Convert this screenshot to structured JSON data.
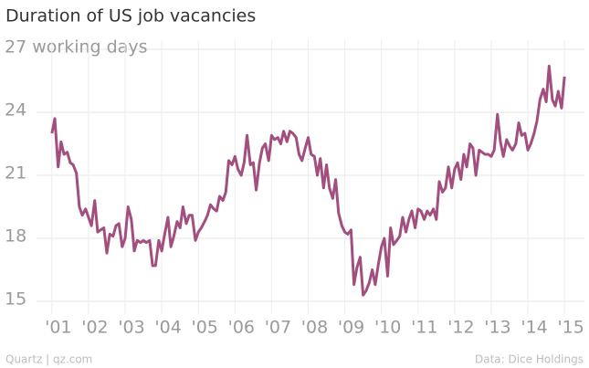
{
  "chart_data": {
    "type": "line",
    "title": "Duration of US job vacancies",
    "source": "Data: Dice Holdings",
    "credit": "Quartz | qz.com",
    "x": [
      2001,
      2001.08,
      2001.17,
      2001.25,
      2001.33,
      2001.42,
      2001.5,
      2001.58,
      2001.67,
      2001.75,
      2001.83,
      2001.92,
      2002,
      2002.08,
      2002.17,
      2002.25,
      2002.33,
      2002.42,
      2002.5,
      2002.58,
      2002.67,
      2002.75,
      2002.83,
      2002.92,
      2003,
      2003.08,
      2003.17,
      2003.25,
      2003.33,
      2003.42,
      2003.5,
      2003.58,
      2003.67,
      2003.75,
      2003.83,
      2003.92,
      2004,
      2004.08,
      2004.17,
      2004.25,
      2004.33,
      2004.42,
      2004.5,
      2004.58,
      2004.67,
      2004.75,
      2004.83,
      2004.92,
      2005,
      2005.08,
      2005.17,
      2005.25,
      2005.33,
      2005.42,
      2005.5,
      2005.58,
      2005.67,
      2005.75,
      2005.83,
      2005.92,
      2006,
      2006.08,
      2006.17,
      2006.25,
      2006.33,
      2006.42,
      2006.5,
      2006.58,
      2006.67,
      2006.75,
      2006.83,
      2006.92,
      2007,
      2007.08,
      2007.17,
      2007.25,
      2007.33,
      2007.42,
      2007.5,
      2007.58,
      2007.67,
      2007.75,
      2007.83,
      2007.92,
      2008,
      2008.08,
      2008.17,
      2008.25,
      2008.33,
      2008.42,
      2008.5,
      2008.58,
      2008.67,
      2008.75,
      2008.83,
      2008.92,
      2009,
      2009.08,
      2009.17,
      2009.25,
      2009.33,
      2009.42,
      2009.5,
      2009.58,
      2009.67,
      2009.75,
      2009.83,
      2009.92,
      2010,
      2010.08,
      2010.17,
      2010.25,
      2010.33,
      2010.42,
      2010.5,
      2010.58,
      2010.67,
      2010.75,
      2010.83,
      2010.92,
      2011,
      2011.08,
      2011.17,
      2011.25,
      2011.33,
      2011.42,
      2011.5,
      2011.58,
      2011.67,
      2011.75,
      2011.83,
      2011.92,
      2012,
      2012.08,
      2012.17,
      2012.25,
      2012.33,
      2012.42,
      2012.5,
      2012.58,
      2012.67,
      2012.75,
      2012.83,
      2012.92,
      2013,
      2013.08,
      2013.17,
      2013.25,
      2013.33,
      2013.42,
      2013.5,
      2013.58,
      2013.67,
      2013.75,
      2013.83,
      2013.92,
      2014,
      2014.08,
      2014.17,
      2014.25,
      2014.33,
      2014.42,
      2014.5,
      2014.58,
      2014.67,
      2014.75,
      2014.83,
      2014.92,
      2015
    ],
    "series": [
      {
        "name": "Duration",
        "color": "#a24f7f",
        "values": [
          23.0,
          23.7,
          21.4,
          22.6,
          22.0,
          22.1,
          21.6,
          21.5,
          21.1,
          19.5,
          19.1,
          19.4,
          19.0,
          18.6,
          19.8,
          18.3,
          18.4,
          18.5,
          17.3,
          18.2,
          18.1,
          18.6,
          18.7,
          17.6,
          18.0,
          19.5,
          18.9,
          17.4,
          17.9,
          17.8,
          17.9,
          17.8,
          17.9,
          16.7,
          16.7,
          17.9,
          17.4,
          18.2,
          19.0,
          17.6,
          18.1,
          18.8,
          18.5,
          19.5,
          18.7,
          19.1,
          19.1,
          17.9,
          18.3,
          18.5,
          18.8,
          19.1,
          19.6,
          19.4,
          19.3,
          20.0,
          19.8,
          20.2,
          21.7,
          21.5,
          21.9,
          21.3,
          21.0,
          21.6,
          22.9,
          21.5,
          21.6,
          20.3,
          21.6,
          22.3,
          22.5,
          21.7,
          22.9,
          22.7,
          22.8,
          22.5,
          23.1,
          22.6,
          23.1,
          23.0,
          22.8,
          22.0,
          21.7,
          22.3,
          22.8,
          22.0,
          21.9,
          21.0,
          21.8,
          20.4,
          21.5,
          20.4,
          19.9,
          20.8,
          19.2,
          18.6,
          18.3,
          18.2,
          18.4,
          15.8,
          16.6,
          17.1,
          15.3,
          15.5,
          15.9,
          16.5,
          15.8,
          16.8,
          17.6,
          18.0,
          16.2,
          18.5,
          17.7,
          17.9,
          18.1,
          19.0,
          18.3,
          18.9,
          19.3,
          18.5,
          19.4,
          19.3,
          18.9,
          19.3,
          19.1,
          19.4,
          18.9,
          20.7,
          20.2,
          20.4,
          21.4,
          20.4,
          21.3,
          21.6,
          20.8,
          22.0,
          21.4,
          22.5,
          22.3,
          21.0,
          22.2,
          22.1,
          22.0,
          22.0,
          21.9,
          22.2,
          23.9,
          22.6,
          21.9,
          22.7,
          22.4,
          22.2,
          22.5,
          23.5,
          22.9,
          23.0,
          22.2,
          22.5,
          23.0,
          23.6,
          24.6,
          25.1,
          24.5,
          26.2,
          24.6,
          24.3,
          25.0,
          24.2,
          25.7
        ]
      }
    ],
    "xlim": [
      2000.58,
      2015.47
    ],
    "xticks": [
      {
        "value": 2001,
        "label": "'01"
      },
      {
        "value": 2002,
        "label": "'02"
      },
      {
        "value": 2003,
        "label": "'03"
      },
      {
        "value": 2004,
        "label": "'04"
      },
      {
        "value": 2005,
        "label": "'05"
      },
      {
        "value": 2006,
        "label": "'06"
      },
      {
        "value": 2007,
        "label": "'07"
      },
      {
        "value": 2008,
        "label": "'08"
      },
      {
        "value": 2009,
        "label": "'09"
      },
      {
        "value": 2010,
        "label": "'10"
      },
      {
        "value": 2011,
        "label": "'11"
      },
      {
        "value": 2012,
        "label": "'12"
      },
      {
        "value": 2013,
        "label": "'13"
      },
      {
        "value": 2014,
        "label": "'14"
      },
      {
        "value": 2015,
        "label": "'15"
      }
    ],
    "ylim": [
      15,
      27
    ],
    "yticks": [
      15,
      18,
      21,
      24,
      {
        "value": 27,
        "label": "27 working days"
      }
    ],
    "grid": true
  }
}
